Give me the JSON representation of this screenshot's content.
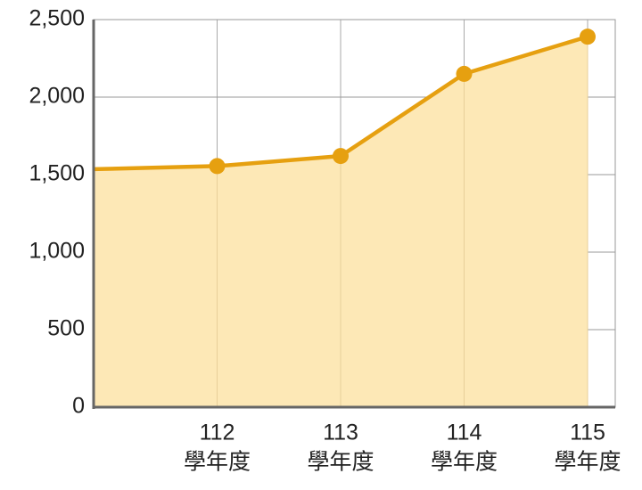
{
  "chart_data": {
    "type": "area",
    "categories": [
      null,
      [
        "112",
        "學年度"
      ],
      [
        "113",
        "學年度"
      ],
      [
        "114",
        "學年度"
      ],
      [
        "115",
        "學年度"
      ]
    ],
    "series": [
      {
        "color": "#e6a010",
        "fill": "#fde8b6",
        "values": [
          1535,
          1555,
          1620,
          2150,
          2390
        ]
      }
    ],
    "ylim": [
      0,
      2500
    ],
    "yticks": [
      0,
      500,
      {
        "value": 1000,
        "label": "1,000"
      },
      {
        "value": 1500,
        "label": "1,500"
      },
      {
        "value": 2000,
        "label": "2,000"
      },
      {
        "value": 2500,
        "label": "2,500"
      }
    ],
    "grid": true
  }
}
